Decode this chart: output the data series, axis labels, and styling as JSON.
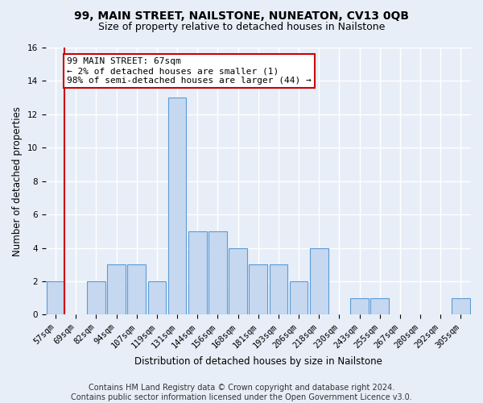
{
  "title": "99, MAIN STREET, NAILSTONE, NUNEATON, CV13 0QB",
  "subtitle": "Size of property relative to detached houses in Nailstone",
  "xlabel": "Distribution of detached houses by size in Nailstone",
  "ylabel": "Number of detached properties",
  "categories": [
    "57sqm",
    "69sqm",
    "82sqm",
    "94sqm",
    "107sqm",
    "119sqm",
    "131sqm",
    "144sqm",
    "156sqm",
    "168sqm",
    "181sqm",
    "193sqm",
    "206sqm",
    "218sqm",
    "230sqm",
    "243sqm",
    "255sqm",
    "267sqm",
    "280sqm",
    "292sqm",
    "305sqm"
  ],
  "values": [
    2,
    0,
    2,
    3,
    3,
    2,
    13,
    5,
    5,
    4,
    3,
    3,
    2,
    4,
    0,
    1,
    1,
    0,
    0,
    0,
    1
  ],
  "bar_color": "#c5d8f0",
  "bar_edge_color": "#5b9bd5",
  "subject_line_color": "#cc0000",
  "ylim": [
    0,
    16
  ],
  "yticks": [
    0,
    2,
    4,
    6,
    8,
    10,
    12,
    14,
    16
  ],
  "annotation_line1": "99 MAIN STREET: 67sqm",
  "annotation_line2": "← 2% of detached houses are smaller (1)",
  "annotation_line3": "98% of semi-detached houses are larger (44) →",
  "annotation_box_color": "white",
  "annotation_box_edge_color": "#cc0000",
  "footer_line1": "Contains HM Land Registry data © Crown copyright and database right 2024.",
  "footer_line2": "Contains public sector information licensed under the Open Government Licence v3.0.",
  "background_color": "#e8eef8",
  "grid_color": "#ffffff",
  "title_fontsize": 10,
  "subtitle_fontsize": 9,
  "axis_label_fontsize": 8.5,
  "tick_fontsize": 7.5,
  "annotation_fontsize": 8,
  "footer_fontsize": 7
}
